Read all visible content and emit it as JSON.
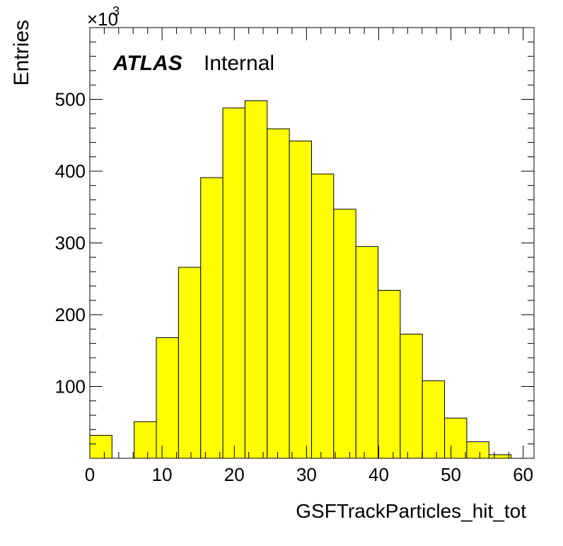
{
  "chart_data": {
    "type": "bar",
    "histogram": true,
    "bin_width": 3.07,
    "x_start": 0,
    "values": [
      32,
      0,
      51,
      168,
      266,
      391,
      488,
      498,
      459,
      442,
      396,
      347,
      295,
      234,
      173,
      108,
      56,
      23,
      5
    ],
    "xlim": [
      0,
      61.5
    ],
    "ylim": [
      0,
      600
    ],
    "x_ticks": [
      0,
      10,
      20,
      30,
      40,
      50,
      60
    ],
    "y_ticks": [
      100,
      200,
      300,
      400,
      500
    ],
    "xlabel": "GSFTrackParticles_hit_tot",
    "ylabel": "Entries",
    "y_multiplier": {
      "base": "×10",
      "exponent": "3"
    },
    "fill_color": "#ffff00",
    "line_color": "#000000",
    "grid": false,
    "legend": "none"
  },
  "annotation": {
    "experiment": "ATLAS",
    "status": "Internal"
  }
}
